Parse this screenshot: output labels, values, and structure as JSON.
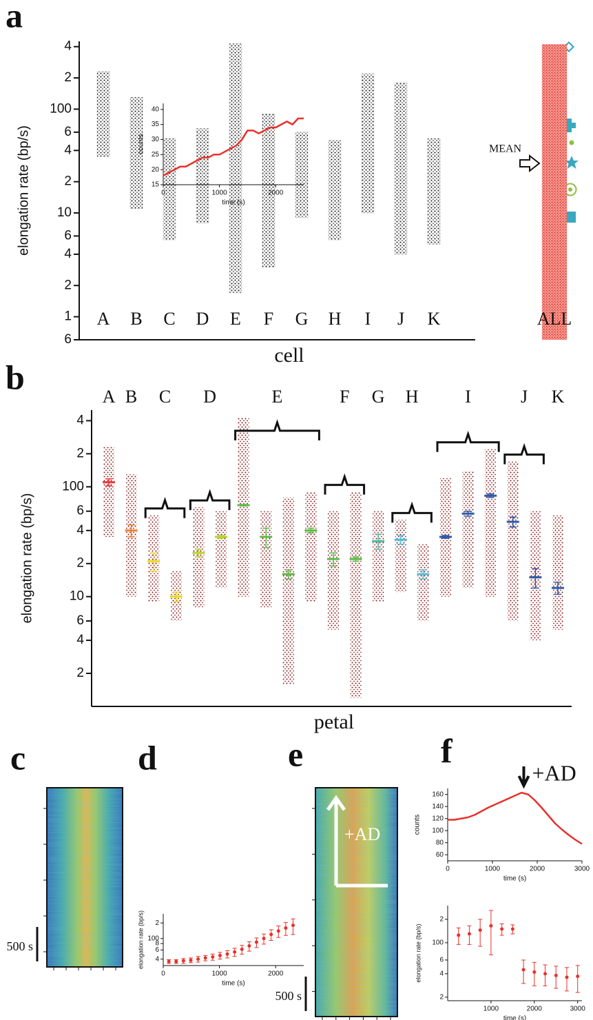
{
  "chart_data": [
    {
      "type": "strip",
      "panel": "a",
      "xlabel": "cell",
      "ylabel": "elongation rate (bp/s)",
      "log": true,
      "categories": [
        "A",
        "B",
        "C",
        "D",
        "E",
        "F",
        "G",
        "H",
        "I",
        "J",
        "K",
        "ALL"
      ],
      "low": [
        35,
        11,
        5.5,
        8,
        1.7,
        3,
        9,
        5.5,
        10,
        4,
        5,
        0.6
      ],
      "high": [
        230,
        130,
        52,
        65,
        430,
        90,
        60,
        50,
        220,
        180,
        52,
        420
      ],
      "colors": [
        "#111111",
        "#111111",
        "#111111",
        "#111111",
        "#111111",
        "#111111",
        "#111111",
        "#111111",
        "#111111",
        "#111111",
        "#111111",
        "#e8382f"
      ],
      "annotation": "MEAN",
      "ylim": [
        0.6,
        450
      ],
      "yticks": [
        {
          "value": 400,
          "label": "4"
        },
        {
          "value": 200,
          "label": "2"
        },
        100,
        {
          "value": 60,
          "label": "6"
        },
        {
          "value": 40,
          "label": "4"
        },
        {
          "value": 20,
          "label": "2"
        },
        10,
        6,
        4,
        2,
        1,
        {
          "value": 0.6,
          "label": "6"
        }
      ]
    },
    {
      "type": "errorstrip",
      "panel": "b",
      "xlabel": "petal",
      "ylabel": "elongation rate (bp/s)",
      "log": true,
      "categories": [
        "A",
        "B",
        "C",
        "C",
        "D",
        "D",
        "E",
        "E",
        "E",
        "E",
        "F",
        "F",
        "G",
        "H",
        "H",
        "I",
        "I",
        "I",
        "J",
        "J",
        "K"
      ],
      "values": [
        110,
        40,
        21,
        10,
        25,
        35,
        68,
        35,
        16,
        40,
        22,
        22,
        32,
        33,
        16,
        35,
        57,
        83,
        48,
        15,
        12
      ],
      "errors": [
        8,
        5,
        4,
        1,
        2,
        1,
        1,
        7,
        1.5,
        2,
        3,
        1,
        5,
        3,
        1.5,
        1,
        3,
        3,
        5,
        3,
        1.5
      ],
      "low": [
        35,
        10,
        9,
        6,
        8,
        12,
        10,
        8,
        1.6,
        9,
        5,
        1.2,
        9,
        11,
        6,
        10,
        12,
        10,
        6,
        4,
        5
      ],
      "high": [
        230,
        130,
        55,
        17,
        65,
        60,
        430,
        60,
        80,
        90,
        60,
        90,
        60,
        50,
        30,
        120,
        140,
        220,
        170,
        60,
        55
      ],
      "colors": [
        "#e83a3a",
        "#f08030",
        "#e8d820",
        "#e8d820",
        "#b5d334",
        "#b5d334",
        "#5db848",
        "#5db848",
        "#5db848",
        "#5db848",
        "#5db848",
        "#5db848",
        "#4fb8a0",
        "#4fc0d8",
        "#4fc0d8",
        "#2e5aa8",
        "#2e5aa8",
        "#2e5aa8",
        "#2e5aa8",
        "#2e5aa8",
        "#2e5aa8"
      ],
      "dot_color": "#8b1a1a",
      "ylim": [
        1,
        500
      ],
      "yticks": [
        {
          "value": 400,
          "label": "4"
        },
        {
          "value": 200,
          "label": "2"
        },
        100,
        {
          "value": 60,
          "label": "6"
        },
        {
          "value": 40,
          "label": "4"
        },
        {
          "value": 20,
          "label": "2"
        },
        10,
        6,
        4,
        2
      ]
    },
    {
      "type": "kymograph",
      "panel": "c",
      "scale_label": "500 s"
    },
    {
      "type": "line",
      "panel": "d",
      "xlabel": "time (s)",
      "ylabel": "counts",
      "color": "#e8302a",
      "x": [
        0,
        100,
        200,
        300,
        400,
        500,
        600,
        700,
        800,
        900,
        1000,
        1100,
        1200,
        1300,
        1400,
        1500,
        1600,
        1700,
        1800,
        1900,
        2000,
        2100,
        2200,
        2300,
        2400,
        2500
      ],
      "values": [
        18,
        19,
        20,
        21,
        21,
        22,
        23,
        24,
        24,
        25,
        25,
        26,
        27,
        28,
        30,
        33,
        33,
        32,
        33,
        34,
        34,
        35,
        36,
        35,
        37,
        37
      ],
      "xlim": [
        0,
        2500
      ],
      "xticks": [
        0,
        1000,
        2000
      ],
      "ylim": [
        15,
        42
      ],
      "yticks": [
        15,
        20,
        25,
        30,
        35,
        40
      ]
    },
    {
      "type": "errorbar",
      "xlabel": "time (s)",
      "ylabel": "elongation rate (bp/s)",
      "log": true,
      "color": "#e8302a",
      "x": [
        100,
        230,
        360,
        490,
        620,
        750,
        880,
        1010,
        1140,
        1270,
        1400,
        1530,
        1660,
        1790,
        1920,
        2050,
        2180,
        2310
      ],
      "values": [
        36,
        36,
        37,
        38,
        40,
        42,
        44,
        47,
        50,
        55,
        62,
        72,
        85,
        100,
        120,
        140,
        160,
        180
      ],
      "errors": [
        3,
        3,
        4,
        4,
        5,
        5,
        6,
        7,
        8,
        10,
        12,
        15,
        18,
        22,
        28,
        35,
        45,
        60
      ],
      "xlim": [
        0,
        2500
      ],
      "xticks": [
        0,
        1000,
        2000
      ],
      "ylim": [
        30,
        300
      ],
      "yticks": [
        {
          "value": 200,
          "label": "2"
        },
        100,
        {
          "value": 80,
          "label": "8"
        },
        {
          "value": 60,
          "label": "6"
        },
        {
          "value": 40,
          "label": "4"
        }
      ]
    },
    {
      "type": "kymograph",
      "panel": "e",
      "scale_label": "500 s",
      "annotation": "+AD"
    },
    {
      "type": "line",
      "panel": "f",
      "xlabel": "time (s)",
      "ylabel": "counts",
      "color": "#e8302a",
      "annotation": "+AD",
      "annotation_x": 1700,
      "x": [
        0,
        150,
        300,
        450,
        600,
        750,
        900,
        1050,
        1200,
        1350,
        1500,
        1650,
        1800,
        1950,
        2100,
        2250,
        2400,
        2550,
        2700,
        2850,
        3000
      ],
      "values": [
        118,
        118,
        120,
        122,
        126,
        132,
        138,
        143,
        148,
        153,
        158,
        163,
        160,
        150,
        138,
        125,
        112,
        102,
        93,
        85,
        78
      ],
      "xlim": [
        0,
        3000
      ],
      "xticks": [
        0,
        1000,
        2000,
        3000
      ],
      "ylim": [
        50,
        170
      ],
      "yticks": [
        60,
        80,
        100,
        120,
        140,
        160
      ]
    },
    {
      "type": "errorbar",
      "xlabel": "time (s)",
      "ylabel": "elongation rate (bp/s)",
      "log": true,
      "color": "#e8302a",
      "x": [
        250,
        500,
        750,
        1000,
        1250,
        1500,
        1750,
        2000,
        2250,
        2500,
        2750,
        3000
      ],
      "values": [
        125,
        130,
        145,
        165,
        150,
        150,
        45,
        42,
        40,
        38,
        36,
        37
      ],
      "errors": [
        30,
        35,
        55,
        95,
        25,
        20,
        15,
        14,
        12,
        12,
        12,
        14
      ],
      "xlim": [
        0,
        3100
      ],
      "xticks": [
        1000,
        2000,
        3000
      ],
      "ylim": [
        18,
        300
      ],
      "yticks": [
        {
          "value": 200,
          "label": "2"
        },
        100,
        {
          "value": 60,
          "label": "6"
        },
        {
          "value": 40,
          "label": "4"
        },
        {
          "value": 20,
          "label": "2"
        }
      ]
    }
  ]
}
